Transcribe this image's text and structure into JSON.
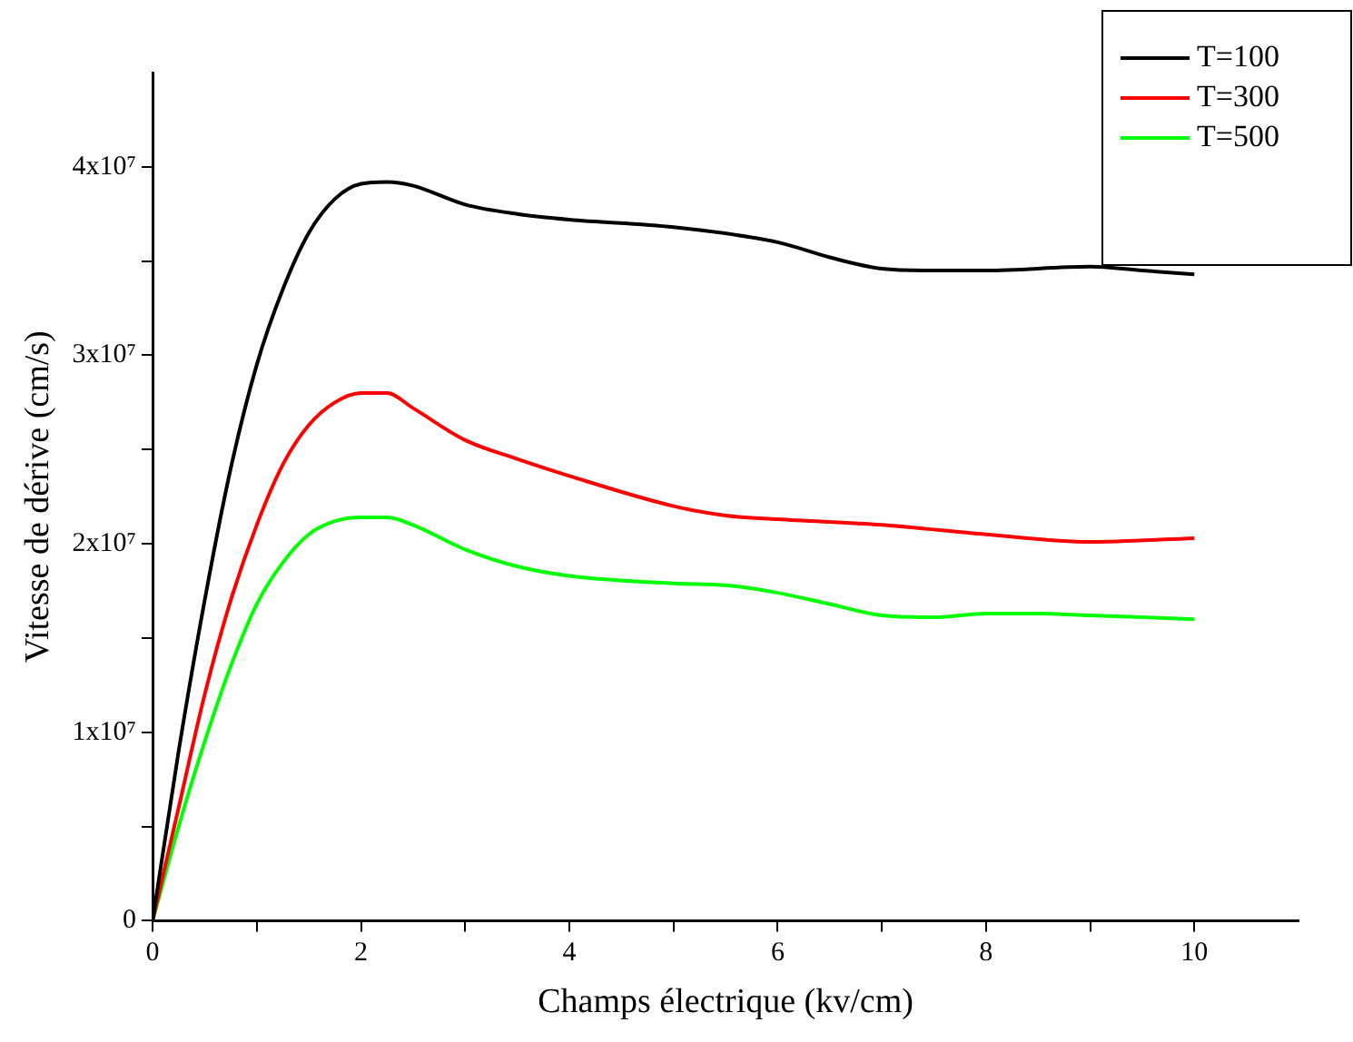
{
  "chart_data": {
    "type": "line",
    "xlabel": "Champs électrique (kv/cm)",
    "ylabel": "Vitesse de dérive (cm/s)",
    "legend": "top right",
    "grid": false,
    "marker": "none",
    "line_style": "solid",
    "xlim": [
      0,
      11
    ],
    "xticks": [
      0,
      {
        "value": 1,
        "label": null
      },
      2,
      {
        "value": 3,
        "label": null
      },
      4,
      {
        "value": 5,
        "label": null
      },
      6,
      {
        "value": 7,
        "label": null
      },
      8,
      {
        "value": 9,
        "label": null
      },
      10
    ],
    "ylim": [
      0,
      45000000
    ],
    "yticks": [
      {
        "value": 0,
        "label": "0"
      },
      {
        "value": 5000000,
        "label": null
      },
      {
        "value": 10000000,
        "label": "1x10⁷"
      },
      {
        "value": 15000000,
        "label": null
      },
      {
        "value": 20000000,
        "label": "2x10⁷"
      },
      {
        "value": 25000000,
        "label": null
      },
      {
        "value": 30000000,
        "label": "3x10⁷"
      },
      {
        "value": 35000000,
        "label": null
      },
      {
        "value": 40000000,
        "label": "4x10⁷"
      }
    ],
    "series": [
      {
        "name": "T=100",
        "color": "#000000",
        "x": [
          0,
          0.25,
          0.5,
          0.75,
          1,
          1.25,
          1.5,
          1.75,
          2,
          2.25,
          2.5,
          3,
          3.5,
          4,
          5,
          6,
          6.5,
          7,
          7.5,
          8,
          9,
          9.5,
          10
        ],
        "values": [
          0,
          9000000,
          17000000,
          24000000,
          29500000,
          33500000,
          36500000,
          38300000,
          39100000,
          39200000,
          39000000,
          38000000,
          37500000,
          37200000,
          36800000,
          36000000,
          35200000,
          34600000,
          34500000,
          34500000,
          34700000,
          34500000,
          34300000
        ]
      },
      {
        "name": "T=300",
        "color": "#ff0000",
        "x": [
          0,
          0.25,
          0.5,
          0.75,
          1,
          1.25,
          1.5,
          1.75,
          2,
          2.25,
          2.5,
          3,
          3.5,
          4,
          5,
          5.5,
          6,
          7,
          8,
          9,
          10
        ],
        "values": [
          0,
          6000000,
          12000000,
          17000000,
          21000000,
          24200000,
          26300000,
          27500000,
          28000000,
          28000000,
          27200000,
          25500000,
          24500000,
          23600000,
          22000000,
          21500000,
          21300000,
          21000000,
          20500000,
          20100000,
          20300000
        ]
      },
      {
        "name": "T=500",
        "color": "#00ff00",
        "x": [
          0,
          0.25,
          0.5,
          0.75,
          1,
          1.25,
          1.5,
          1.75,
          2,
          2.25,
          2.5,
          3,
          3.5,
          4,
          5,
          5.5,
          6,
          6.5,
          7,
          7.5,
          8,
          8.5,
          9,
          10
        ],
        "values": [
          0,
          5000000,
          9500000,
          13500000,
          16800000,
          19000000,
          20500000,
          21200000,
          21400000,
          21400000,
          21000000,
          19700000,
          18800000,
          18300000,
          17900000,
          17800000,
          17400000,
          16800000,
          16200000,
          16100000,
          16300000,
          16300000,
          16200000,
          16000000
        ]
      }
    ]
  }
}
